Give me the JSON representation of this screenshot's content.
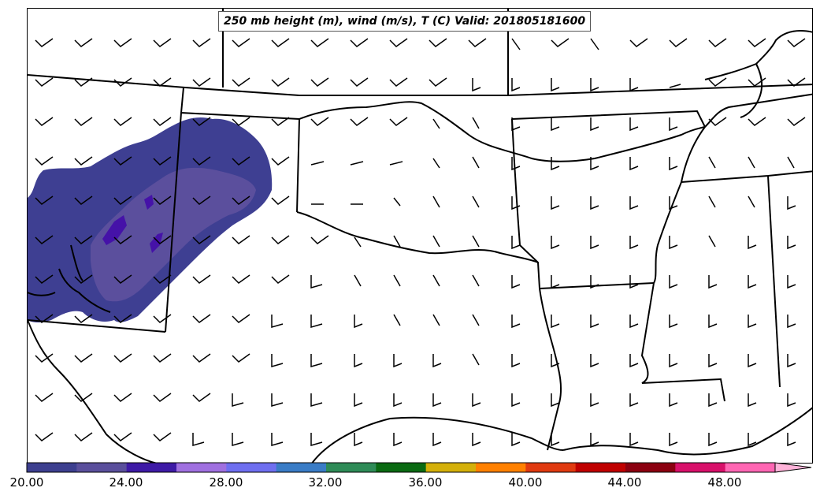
{
  "title": "250 mb height (m), wind (m/s), T (C) Valid: 201805181600",
  "colorbar": {
    "labels": [
      "20.00",
      "24.00",
      "28.00",
      "32.00",
      "36.00",
      "40.00",
      "44.00",
      "48.00"
    ],
    "colors": [
      "#3d3f8f",
      "#5a4f9c",
      "#3e1aa6",
      "#a070e0",
      "#6f6ff0",
      "#3a7cc6",
      "#2e8b57",
      "#0a6a12",
      "#d4b00a",
      "#ff8000",
      "#e03a10",
      "#c00000",
      "#8b0010",
      "#d8106a",
      "#ff66b3"
    ],
    "extend_color": "#ffb3d9"
  },
  "map": {
    "background": "#ffffff",
    "temperature_shading_colors": [
      "#3e3f92",
      "#5b4f9d",
      "#4512a8"
    ],
    "features": [
      "state-borders",
      "coastline",
      "wind-barbs",
      "temperature-contour-fill"
    ]
  }
}
